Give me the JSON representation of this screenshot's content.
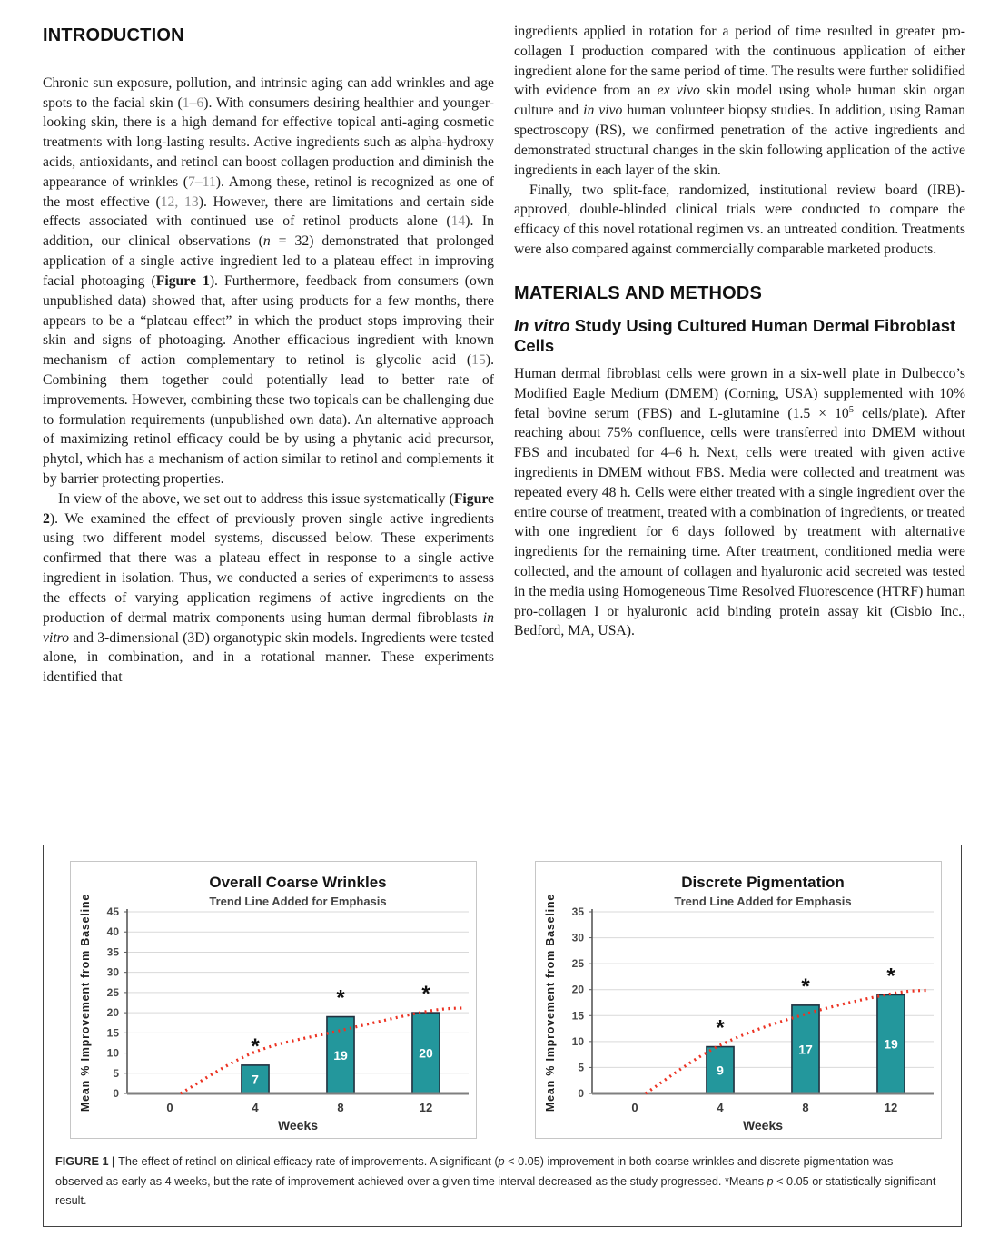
{
  "columns": {
    "left": {
      "heading": "INTRODUCTION",
      "paragraphs": [
        {
          "indent": false,
          "segments": [
            {
              "t": "Chronic sun exposure, pollution, and intrinsic aging can add wrinkles and age spots to the facial skin (",
              "s": ""
            },
            {
              "t": "1–6",
              "s": "c"
            },
            {
              "t": "). With consumers desiring healthier and younger-looking skin, there is a high demand for effective topical anti-aging cosmetic treatments with long-lasting results. Active ingredients such as alpha-hydroxy acids, antioxidants, and retinol can boost collagen production and diminish the appearance of wrinkles (",
              "s": ""
            },
            {
              "t": "7–11",
              "s": "c"
            },
            {
              "t": "). Among these, retinol is recognized as one of the most effective (",
              "s": ""
            },
            {
              "t": "12, 13",
              "s": "c"
            },
            {
              "t": "). However, there are limitations and certain side effects associated with continued use of retinol products alone (",
              "s": ""
            },
            {
              "t": "14",
              "s": "c"
            },
            {
              "t": "). In addition, our clinical observations (",
              "s": ""
            },
            {
              "t": "n",
              "s": "i"
            },
            {
              "t": " = 32) demonstrated that prolonged application of a single active ingredient led to a plateau effect in improving facial photoaging (",
              "s": ""
            },
            {
              "t": "Figure 1",
              "s": "b"
            },
            {
              "t": "). Furthermore, feedback from consumers (own unpublished data) showed that, after using products for a few months, there appears to be a “plateau effect” in which the product stops improving their skin and signs of photoaging. Another efficacious ingredient with known mechanism of action complementary to retinol is glycolic acid (",
              "s": ""
            },
            {
              "t": "15",
              "s": "c"
            },
            {
              "t": "). Combining them together could potentially lead to better rate of improvements. However, combining these two topicals can be challenging due to formulation requirements (unpublished own data). An alternative approach of maximizing retinol efficacy could be by using a phytanic acid precursor, phytol, which has a mechanism of action similar to retinol and complements it by barrier protecting properties.",
              "s": ""
            }
          ]
        },
        {
          "indent": true,
          "segments": [
            {
              "t": "In view of the above, we set out to address this issue systematically (",
              "s": ""
            },
            {
              "t": "Figure 2",
              "s": "b"
            },
            {
              "t": "). We examined the effect of previously proven single active ingredients using two different model systems, discussed below. These experiments confirmed that there was a plateau effect in response to a single active ingredient in isolation. Thus, we conducted a series of experiments to assess the effects of varying application regimens of active ingredients on the production of dermal matrix components using human dermal fibroblasts ",
              "s": ""
            },
            {
              "t": "in vitro",
              "s": "i"
            },
            {
              "t": " and 3-dimensional (3D) organotypic skin models. Ingredients were tested alone, in combination, and in a rotational manner. These experiments identified that",
              "s": ""
            }
          ]
        }
      ]
    },
    "right": {
      "paragraphs_top": [
        {
          "indent": false,
          "segments": [
            {
              "t": "ingredients applied in rotation for a period of time resulted in greater pro-collagen I production compared with the continuous application of either ingredient alone for the same period of time. The results were further solidified with evidence from an ",
              "s": ""
            },
            {
              "t": "ex vivo",
              "s": "i"
            },
            {
              "t": " skin model using whole human skin organ culture and ",
              "s": ""
            },
            {
              "t": "in vivo",
              "s": "i"
            },
            {
              "t": " human volunteer biopsy studies. In addition, using Raman spectroscopy (RS), we confirmed penetration of the active ingredients and demonstrated structural changes in the skin following application of the active ingredients in each layer of the skin.",
              "s": ""
            }
          ]
        },
        {
          "indent": true,
          "segments": [
            {
              "t": "Finally, two split-face, randomized, institutional review board (IRB)-approved, double-blinded clinical trials were conducted to compare the efficacy of this novel rotational regimen vs. an untreated condition. Treatments were also compared against commercially comparable marketed products.",
              "s": ""
            }
          ]
        }
      ],
      "section_heading": "MATERIALS AND METHODS",
      "subsection_segments": [
        {
          "t": "In vitro",
          "s": "i"
        },
        {
          "t": " Study Using Cultured Human Dermal Fibroblast Cells",
          "s": ""
        }
      ],
      "paragraphs_methods": [
        {
          "indent": false,
          "segments": [
            {
              "t": "Human dermal fibroblast cells were grown in a six-well plate in Dulbecco’s Modified Eagle Medium (DMEM) (Corning, USA) supplemented with 10% fetal bovine serum (FBS) and L-glutamine (1.5 × 10",
              "s": ""
            },
            {
              "t": "5",
              "s": "sup"
            },
            {
              "t": " cells/plate). After reaching about 75% confluence, cells were transferred into DMEM without FBS and incubated for 4–6 h. Next, cells were treated with given active ingredients in DMEM without FBS. Media were collected and treatment was repeated every 48 h. Cells were either treated with a single ingredient over the entire course of treatment, treated with a combination of ingredients, or treated with one ingredient for 6 days followed by treatment with alternative ingredients for the remaining time. After treatment, conditioned media were collected, and the amount of collagen and hyaluronic acid secreted was tested in the media using Homogeneous Time Resolved Fluorescence (HTRF) human pro-collagen I or hyaluronic acid binding protein assay kit (Cisbio Inc., Bedford, MA, USA).",
              "s": ""
            }
          ]
        }
      ]
    }
  },
  "figure": {
    "caption_segments": [
      {
        "t": "FIGURE 1 | ",
        "s": "b"
      },
      {
        "t": "The effect of retinol on clinical efficacy rate of improvements. A significant (",
        "s": ""
      },
      {
        "t": "p",
        "s": "i"
      },
      {
        "t": " < 0.05) improvement in both coarse wrinkles and discrete pigmentation was observed as early as 4 weeks, but the rate of improvement achieved over a given time interval decreased as the study progressed. *Means ",
        "s": ""
      },
      {
        "t": "p",
        "s": "i"
      },
      {
        "t": " < 0.05 or statistically significant result.",
        "s": ""
      }
    ]
  },
  "chart_data": [
    {
      "type": "bar",
      "title": "Overall Coarse Wrinkles",
      "subtitle": "Trend Line Added for Emphasis",
      "categories": [
        "0",
        "4",
        "8",
        "12"
      ],
      "values": [
        0,
        7,
        19,
        20
      ],
      "bar_labels": [
        "",
        "7",
        "19",
        "20"
      ],
      "significance": [
        false,
        true,
        true,
        true
      ],
      "xlabel": "Weeks",
      "ylabel": "Mean % Improvement from Baseline",
      "ylim": [
        0,
        45
      ],
      "ytick_step": 5,
      "grid": true,
      "trend_points": [
        [
          0.5,
          0
        ],
        [
          4,
          10.3
        ],
        [
          8,
          15.6
        ],
        [
          12,
          20.3
        ],
        [
          13.8,
          21.2
        ]
      ],
      "colors": {
        "bar": "#23979c",
        "bar_border": "#22313f",
        "trend": "#ec3323",
        "grid": "#d9d9d9",
        "axis": "#595959",
        "baseline": "#7f7f7f"
      }
    },
    {
      "type": "bar",
      "title": "Discrete Pigmentation",
      "subtitle": "Trend Line Added for Emphasis",
      "categories": [
        "0",
        "4",
        "8",
        "12"
      ],
      "values": [
        0,
        9,
        17,
        19
      ],
      "bar_labels": [
        "",
        "9",
        "17",
        "19"
      ],
      "significance": [
        false,
        true,
        true,
        true
      ],
      "xlabel": "Weeks",
      "ylabel": "Mean % Improvement from Baseline",
      "ylim": [
        0,
        35
      ],
      "ytick_step": 5,
      "grid": true,
      "trend_points": [
        [
          0.5,
          0
        ],
        [
          4,
          9.3
        ],
        [
          8,
          15.3
        ],
        [
          12,
          19.2
        ],
        [
          13.8,
          19.9
        ]
      ],
      "colors": {
        "bar": "#23979c",
        "bar_border": "#22313f",
        "trend": "#ec3323",
        "grid": "#d9d9d9",
        "axis": "#595959",
        "baseline": "#7f7f7f"
      }
    }
  ]
}
